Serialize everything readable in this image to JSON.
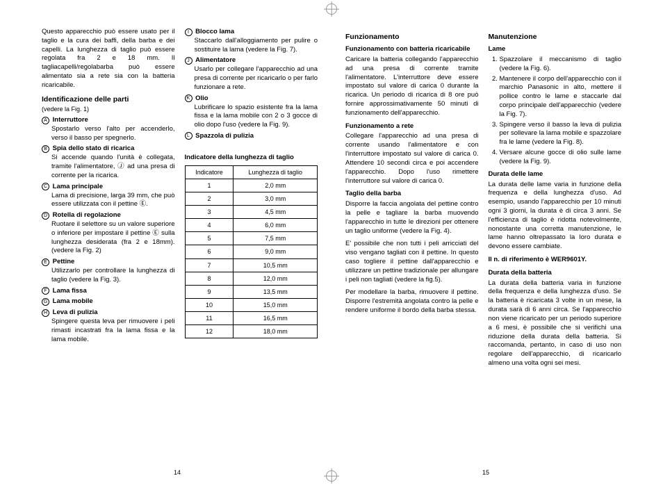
{
  "intro": "Questo apparecchio può essere usato per il taglio e la cura dei baffi, della barba e dei capelli. La lunghezza di taglio può essere regolata fra 2 e 18 mm. Il tagliacapelli/regolabarba può essere alimentato sia a rete sia con la batteria ricaricabile.",
  "parts_heading": "Identificazione delle parti",
  "parts_see": "(vedere la Fig. 1)",
  "parts": [
    {
      "l": "A",
      "n": "Interruttore",
      "t": "Spostarlo verso l'alto per accenderlo, verso il basso per spegnerlo."
    },
    {
      "l": "B",
      "n": "Spia dello stato di ricarica",
      "t": "Si accende quando l'unità è collegata, tramite l'alimentatore, Ⓙ ad una presa di corrente per la ricarica."
    },
    {
      "l": "C",
      "n": "Lama principale",
      "t": "Lama di precisione, larga 39 mm, che può essere utilizzata con il pettine Ⓔ."
    },
    {
      "l": "D",
      "n": "Rotella di regolazione",
      "t": "Ruotare il selettore su un valore superiore o inferiore per impostare il pettine Ⓔ sulla lunghezza desiderata (fra 2 e 18mm).(vedere la Fig. 2)"
    },
    {
      "l": "E",
      "n": "Pettine",
      "t": "Utilizzarlo per controllare la lunghezza di taglio (vedere la Fig. 3)."
    },
    {
      "l": "F",
      "n": "Lama fissa",
      "t": ""
    },
    {
      "l": "G",
      "n": "Lama mobile",
      "t": ""
    },
    {
      "l": "H",
      "n": "Leva di pulizia",
      "t": "Spingere questa leva per rimuovere i peli rimasti incastrati fra la lama fissa e la lama mobile."
    },
    {
      "l": "I",
      "n": "Blocco lama",
      "t": "Staccarlo dall'alloggiamento per pulire o sostituire la lama (vedere la Fig. 7)."
    },
    {
      "l": "J",
      "n": "Alimentatore",
      "t": "Usarlo per collegare l'apparecchio ad una presa di corrente per ricaricarlo o per farlo funzionare a rete."
    },
    {
      "l": "K",
      "n": "Olio",
      "t": "Lubrificare lo spazio esistente fra la lama fissa e la lama mobile con 2 o 3 gocce di olio dopo l'uso (vedere la Fig. 9)."
    },
    {
      "l": "L",
      "n": "Spazzola di pulizia",
      "t": ""
    }
  ],
  "table_heading": "Indicatore della lunghezza di taglio",
  "table_head": {
    "c1": "Indicatore",
    "c2": "Lunghezza di taglio"
  },
  "table_rows": [
    {
      "i": "1",
      "v": "2,0 mm"
    },
    {
      "i": "2",
      "v": "3,0 mm"
    },
    {
      "i": "3",
      "v": "4,5 mm"
    },
    {
      "i": "4",
      "v": "6,0 mm"
    },
    {
      "i": "5",
      "v": "7,5 mm"
    },
    {
      "i": "6",
      "v": "9,0 mm"
    },
    {
      "i": "7",
      "v": "10,5 mm"
    },
    {
      "i": "8",
      "v": "12,0 mm"
    },
    {
      "i": "9",
      "v": "13,5 mm"
    },
    {
      "i": "10",
      "v": "15,0 mm"
    },
    {
      "i": "11",
      "v": "16,5 mm"
    },
    {
      "i": "12",
      "v": "18,0 mm"
    }
  ],
  "func_heading": "Funzionamento",
  "func_batt_h": "Funzionamento con batteria ricaricabile",
  "func_batt": "Caricare la batteria collegando l'apparecchio ad una presa di corrente tramite l'alimentatore. L'interruttore deve essere impostato sul valore di carica 0 durante la ricarica. Un periodo di ricarica di 8 ore può fornire approssimativamente 50 minuti di funzionamento dell'apparecchio.",
  "func_ac_h": "Funzionamento a rete",
  "func_ac": "Collegare l'apparecchio ad una presa di corrente usando l'alimentatore e con l'interruttore impostato sul valore di carica 0. Attendere 10 secondi circa e poi accendere l'apparecchio. Dopo l'uso rimettere l'interruttore sul valore di carica 0.",
  "func_beard_h": "Taglio della barba",
  "func_beard1": "Disporre la faccia angolata del pettine contro la pelle e tagliare la barba muovendo l'apparecchio in tutte le direzioni per ottenere un taglio uniforme (vedere la Fig. 4).",
  "func_beard2": "E' possibile che non tutti i peli arricciati del viso vengano tagliati con il pettine. In questo caso togliere il pettine dall'apparecchio e utilizzare un pettine tradizionale per allungare i peli non tagliati (vedere la fig.5).",
  "func_beard3": "Per modellare la barba, rimuovere il pettine. Disporre l'estremità angolata contro la pelle e rendere uniforme il bordo della barba stessa.",
  "maint_heading": "Manutenzione",
  "maint_blades_h": "Lame",
  "maint_steps": [
    "Spazzolare il meccanismo di taglio (vedere la Fig. 6).",
    "Mantenere il corpo dell'apparecchio con il marchio Panasonic in alto, mettere il pollice contro le lame e staccarle dal corpo principale dell'apparecchio (vedere la Fig. 7).",
    "Spingere verso il basso la leva di pulizia per sollevare la lama mobile e spazzolare fra le lame (vedere la Fig. 8).",
    "Versare alcune gocce di olio sulle lame (vedere la Fig. 9)."
  ],
  "blade_life_h": "Durata delle lame",
  "blade_life": "La durata delle lame varia in funzione della frequenza e della lunghezza d'uso. Ad esempio, usando l'apparecchio per 10 minuti ogni 3 giorni, la durata è di circa 3 anni. Se l'efficienza di taglio è ridotta notevolmente, nonostante una corretta manutenzione, le lame hanno oltrepassato la loro durata e devono essere cambiate.",
  "blade_ref": "Il n. di riferimento è WER9601Y.",
  "batt_life_h": "Durata della batteria",
  "batt_life": "La durata della batteria varia in funzione della frequenza e della lunghezza d'uso. Se la batteria è ricaricata 3 volte in un mese, la durata sarà di 6 anni circa. Se l'apparecchio non viene ricaricato per un periodo superiore a 6 mesi, è possibile che si verifichi una riduzione della durata della batteria. Si raccomanda, pertanto, in caso di uso non regolare dell'apparecchio, di ricaricarlo almeno una volta ogni sei mesi.",
  "pageno_left": "14",
  "pageno_right": "15"
}
